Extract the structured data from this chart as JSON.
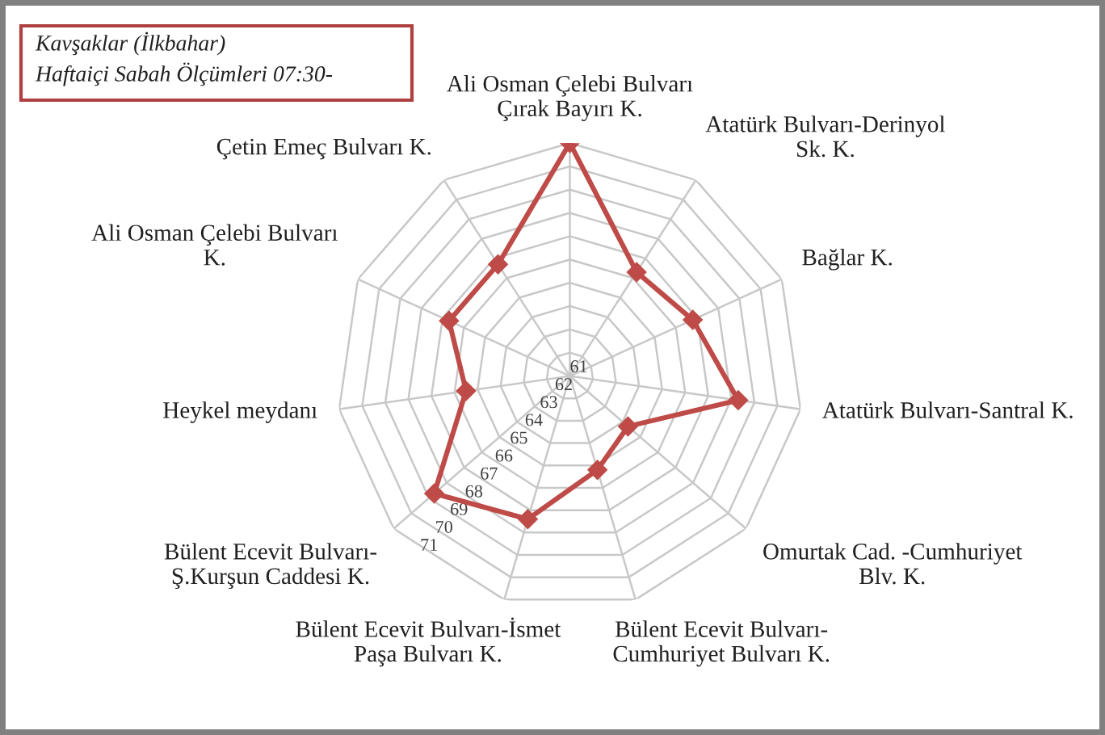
{
  "chart_data": {
    "type": "radar",
    "title": "Kavşaklar (İlkbahar)",
    "subtitle": "Haftaiçi Sabah Ölçümleri 07:30-",
    "categories": [
      "Ali Osman Çelebi Bulvarı\nÇırak Bayırı K.",
      "Atatürk Bulvarı-Derinyol\nSk. K.",
      "Bağlar K.",
      "Atatürk Bulvarı-Santral K.",
      "Omurtak Cad. -Cumhuriyet\nBlv. K.",
      "Bülent Ecevit Bulvarı-\nCumhuriyet Bulvarı K.",
      "Bülent Ecevit Bulvarı-İsmet\nPaşa Bulvarı K.",
      "Bülent Ecevit Bulvarı-\nŞ.Kurşun Caddesi K.",
      "Heykel meydanı",
      "Ali Osman Çelebi Bulvarı\nK.",
      "Çetin Emeç Bulvarı K."
    ],
    "series": [
      {
        "color": "#be4b48",
        "values": [
          71.0,
          66.3,
          66.8,
          68.3,
          64.3,
          65.2,
          67.4,
          68.7,
          65.5,
          66.7,
          66.7
        ]
      }
    ],
    "ylim": [
      61,
      71
    ],
    "yticks": [
      61,
      62,
      63,
      64,
      65,
      66,
      67,
      68,
      69,
      70,
      71
    ],
    "grid": true,
    "marker": "diamond",
    "line_style": "solid"
  }
}
